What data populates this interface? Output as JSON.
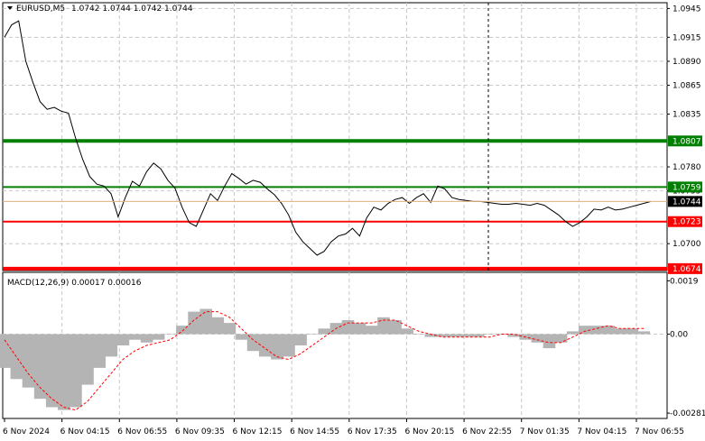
{
  "header": {
    "symbol": "EURUSD,M5",
    "ohlc": "1.0742 1.0744 1.0742 1.0744"
  },
  "colors": {
    "resistance_strong": "#008000",
    "resistance": "#008000",
    "support": "#ff0000",
    "support_strong": "#ff0000",
    "price_line": "#000000",
    "current_line": "#e0b080",
    "macd_hist": "#b4b4b4",
    "macd_signal": "#ff0000"
  },
  "chart_data": [
    {
      "type": "line",
      "title": "EURUSD,M5",
      "y_ticks": [
        "1.0945",
        "1.0915",
        "1.0890",
        "1.0865",
        "1.0835",
        "1.0780",
        "1.0755",
        "1.0700"
      ],
      "x_ticks": [
        "6 Nov 2024",
        "6 Nov 04:15",
        "6 Nov 06:55",
        "6 Nov 09:35",
        "6 Nov 12:15",
        "6 Nov 14:55",
        "6 Nov 17:35",
        "6 Nov 20:15",
        "6 Nov 22:55",
        "7 Nov 01:35",
        "7 Nov 04:15",
        "7 Nov 06:55"
      ],
      "ylim": [
        1.0672,
        1.0951
      ],
      "levels": [
        {
          "label": "1.0807",
          "value": 1.0807,
          "kind": "resistance_strong"
        },
        {
          "label": "1.0759",
          "value": 1.0759,
          "kind": "resistance"
        },
        {
          "label": "1.0723",
          "value": 1.0723,
          "kind": "support"
        },
        {
          "label": "1.0674",
          "value": 1.0674,
          "kind": "support_strong"
        }
      ],
      "current_price": "1.0744",
      "current_value": 1.0744,
      "series": [
        {
          "x": [
            0,
            0.3,
            0.6,
            0.9,
            1.2,
            1.5,
            1.8,
            2.1,
            2.4,
            2.7,
            3.0,
            3.3,
            3.6,
            3.9,
            4.2,
            4.5,
            4.8,
            5.1,
            5.4,
            5.7,
            6.0,
            6.3,
            6.6,
            6.9,
            7.2,
            7.5,
            7.8,
            8.1,
            8.4,
            8.7,
            9.0,
            9.3,
            9.6,
            9.9,
            10.2,
            10.5,
            10.8,
            11.1,
            11.4,
            11.7,
            12.0,
            12.3,
            12.6,
            12.9,
            13.2,
            13.5,
            13.8,
            14.1,
            14.4,
            14.7,
            15.0,
            15.3,
            15.6,
            15.9,
            16.2,
            16.5,
            16.8,
            17.1,
            17.4,
            17.7,
            18.0,
            18.3,
            18.6,
            18.9,
            19.2,
            19.5,
            19.8,
            20.1,
            20.4,
            20.7,
            21.0,
            21.3,
            21.6,
            21.9,
            22.2,
            22.5,
            22.8,
            23.1,
            23.4,
            23.7,
            24.0,
            24.3,
            24.6,
            24.9,
            25.2,
            25.5,
            25.8,
            26.1,
            26.4,
            26.7,
            27.0,
            27.3
          ],
          "values": [
            1.0915,
            1.0928,
            1.0932,
            1.089,
            1.0868,
            1.0848,
            1.084,
            1.0842,
            1.0838,
            1.0836,
            1.081,
            1.0788,
            1.077,
            1.0762,
            1.076,
            1.0752,
            1.0728,
            1.0748,
            1.0765,
            1.076,
            1.0775,
            1.0784,
            1.0778,
            1.0766,
            1.0758,
            1.0738,
            1.0722,
            1.0718,
            1.0735,
            1.0752,
            1.0745,
            1.076,
            1.0773,
            1.0768,
            1.0762,
            1.0766,
            1.0764,
            1.0757,
            1.0751,
            1.0742,
            1.073,
            1.0712,
            1.0702,
            1.0695,
            1.0688,
            1.0692,
            1.0702,
            1.0708,
            1.071,
            1.0716,
            1.0708,
            1.0727,
            1.0738,
            1.0735,
            1.0742,
            1.0746,
            1.0748,
            1.0742,
            1.0748,
            1.0752,
            1.0743,
            1.076,
            1.0757,
            1.0748,
            1.0746,
            1.0745,
            1.0744,
            1.0744,
            1.0743,
            1.0742,
            1.0741,
            1.0741,
            1.0742,
            1.0741,
            1.074,
            1.0742,
            1.074,
            1.0735,
            1.073,
            1.0723,
            1.0718,
            1.0722,
            1.0728,
            1.0736,
            1.0735,
            1.0738,
            1.0735,
            1.0736,
            1.0738,
            1.074,
            1.0742,
            1.0744
          ]
        }
      ]
    },
    {
      "type": "bar",
      "title": "MACD(12,26,9) 0.00017 0.00016",
      "y_ticks": [
        "0.0019",
        "0.00",
        "-0.00281"
      ],
      "ylim": [
        -0.003,
        0.0022
      ],
      "series": [
        {
          "name": "MACD(12,26,9)",
          "x": [
            0,
            0.5,
            1.0,
            1.5,
            2.0,
            2.5,
            3.0,
            3.5,
            4.0,
            4.5,
            5.0,
            5.5,
            6.0,
            6.5,
            7.0,
            7.5,
            8.0,
            8.5,
            9.0,
            9.5,
            10.0,
            10.5,
            11.0,
            11.5,
            12.0,
            12.5,
            13.0,
            13.5,
            14.0,
            14.5,
            15.0,
            15.5,
            16.0,
            16.5,
            17.0,
            17.5,
            18.0,
            18.5,
            19.0,
            19.5,
            20.0,
            20.5,
            21.0,
            21.5,
            22.0,
            22.5,
            23.0,
            23.5,
            24.0,
            24.5,
            25.0,
            25.5,
            26.0,
            26.5,
            27.0
          ],
          "values": [
            -0.0012,
            -0.0016,
            -0.0019,
            -0.0023,
            -0.0026,
            -0.0027,
            -0.0026,
            -0.0018,
            -0.0012,
            -0.0008,
            -0.0004,
            -0.0002,
            -0.0003,
            -0.0002,
            0.0,
            0.0003,
            0.0008,
            0.0009,
            0.0006,
            0.0004,
            -0.0002,
            -0.0006,
            -0.0008,
            -0.0009,
            -0.0008,
            -0.0004,
            0.0,
            0.0002,
            0.0004,
            0.0005,
            0.0004,
            0.0003,
            0.0006,
            0.0005,
            0.0002,
            0.0,
            -0.0001,
            -0.0001,
            -0.0001,
            -0.0001,
            -0.0001,
            0.0,
            0.0,
            -0.0001,
            -0.0002,
            -0.0003,
            -0.0005,
            -0.0003,
            0.0001,
            0.0003,
            0.0003,
            0.0003,
            0.0002,
            0.0002,
            0.0001
          ]
        },
        {
          "name": "Signal",
          "x": [
            0,
            0.5,
            1.0,
            1.5,
            2.0,
            2.5,
            3.0,
            3.5,
            4.0,
            4.5,
            5.0,
            5.5,
            6.0,
            6.5,
            7.0,
            7.5,
            8.0,
            8.5,
            9.0,
            9.5,
            10.0,
            10.5,
            11.0,
            11.5,
            12.0,
            12.5,
            13.0,
            13.5,
            14.0,
            14.5,
            15.0,
            15.5,
            16.0,
            16.5,
            17.0,
            17.5,
            18.0,
            18.5,
            19.0,
            19.5,
            20.0,
            20.5,
            21.0,
            21.5,
            22.0,
            22.5,
            23.0,
            23.5,
            24.0,
            24.5,
            25.0,
            25.5,
            26.0,
            26.5,
            27.0
          ],
          "values": [
            -0.0002,
            -0.0008,
            -0.0014,
            -0.0019,
            -0.0023,
            -0.0026,
            -0.0027,
            -0.0024,
            -0.0019,
            -0.0014,
            -0.0009,
            -0.0006,
            -0.0004,
            -0.0003,
            -0.0002,
            0.0001,
            0.0005,
            0.0008,
            0.0008,
            0.0006,
            0.0002,
            -0.0002,
            -0.0005,
            -0.0008,
            -0.0009,
            -0.0007,
            -0.0004,
            -0.0001,
            0.0002,
            0.0004,
            0.0004,
            0.0004,
            0.0005,
            0.0005,
            0.0003,
            0.0001,
            0.0,
            -0.0001,
            -0.0001,
            -0.0001,
            -0.0001,
            -0.0001,
            0.0,
            0.0,
            -0.0001,
            -0.0002,
            -0.0003,
            -0.0003,
            -0.0001,
            0.0001,
            0.0002,
            0.0003,
            0.0002,
            0.0002,
            0.0002
          ]
        }
      ]
    }
  ]
}
